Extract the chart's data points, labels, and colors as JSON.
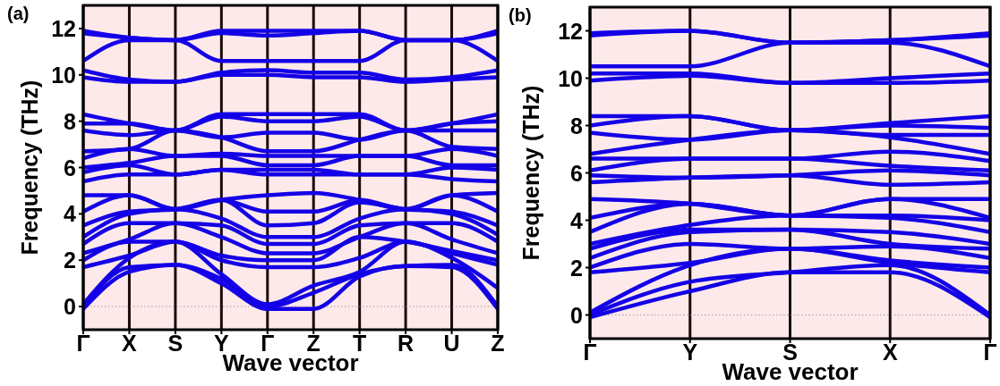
{
  "chart_data": [
    {
      "type": "line",
      "title": "(a)",
      "xlabel": "Wave vector",
      "ylabel": "Frequency (THz)",
      "categories": [
        "Γ",
        "X",
        "S",
        "Y",
        "Γ",
        "Z",
        "T",
        "R",
        "U",
        "Z"
      ],
      "ylim": [
        -1,
        13
      ],
      "yticks": [
        0,
        2,
        4,
        6,
        8,
        10,
        12
      ],
      "grid": "x",
      "marker": "none",
      "line_style": "solid",
      "ref_lines": [
        {
          "axis": "y",
          "value": 0,
          "color": "#888888",
          "line_style": "dotted"
        }
      ],
      "series": [
        {
          "color": "#1400e6",
          "values": [
            -0.1,
            1.5,
            1.8,
            1.0,
            -0.1,
            -0.1,
            1.3,
            1.75,
            1.7,
            -0.1
          ]
        },
        {
          "color": "#1400e6",
          "values": [
            0,
            1.7,
            1.8,
            1.2,
            0,
            0.6,
            1.4,
            1.75,
            1.8,
            0
          ]
        },
        {
          "color": "#1400e6",
          "values": [
            0.1,
            2.1,
            2.8,
            1.4,
            0.1,
            0.9,
            1.5,
            2.8,
            2.1,
            0.8
          ]
        },
        {
          "color": "#1400e6",
          "values": [
            1.7,
            2.2,
            2.8,
            2.0,
            1.7,
            1.7,
            2.1,
            2.8,
            2.3,
            1.8
          ]
        },
        {
          "color": "#1400e6",
          "values": [
            2.0,
            2.8,
            2.8,
            2.2,
            2.0,
            2.0,
            3.0,
            2.8,
            2.4,
            2.0
          ]
        },
        {
          "color": "#1400e6",
          "values": [
            2.3,
            2.9,
            3.6,
            3.0,
            2.3,
            2.3,
            3.0,
            3.6,
            2.9,
            2.3
          ]
        },
        {
          "color": "#1400e6",
          "values": [
            2.7,
            3.6,
            3.6,
            3.5,
            2.7,
            2.7,
            3.5,
            3.6,
            3.6,
            2.8
          ]
        },
        {
          "color": "#1400e6",
          "values": [
            3.0,
            4.0,
            4.2,
            3.8,
            3.0,
            3.0,
            3.8,
            4.2,
            4.0,
            3.1
          ]
        },
        {
          "color": "#1400e6",
          "values": [
            3.5,
            4.1,
            4.2,
            4.6,
            3.5,
            3.6,
            4.5,
            4.2,
            4.1,
            3.5
          ]
        },
        {
          "color": "#1400e6",
          "values": [
            4.1,
            4.8,
            4.2,
            4.6,
            4.1,
            4.1,
            4.6,
            4.2,
            4.8,
            4.1
          ]
        },
        {
          "color": "#1400e6",
          "values": [
            4.8,
            4.8,
            4.2,
            4.6,
            4.8,
            4.9,
            4.6,
            4.2,
            4.8,
            4.9
          ]
        },
        {
          "color": "#1400e6",
          "values": [
            5.4,
            5.7,
            5.7,
            5.9,
            5.7,
            5.7,
            5.7,
            5.7,
            5.5,
            5.4
          ]
        },
        {
          "color": "#1400e6",
          "values": [
            5.8,
            6.1,
            5.7,
            5.9,
            5.9,
            5.9,
            5.7,
            5.7,
            6.0,
            5.9
          ]
        },
        {
          "color": "#1400e6",
          "values": [
            6.0,
            6.2,
            6.5,
            6.5,
            6.1,
            6.1,
            6.5,
            6.5,
            6.1,
            6.1
          ]
        },
        {
          "color": "#1400e6",
          "values": [
            6.4,
            6.8,
            6.5,
            6.6,
            6.5,
            6.5,
            6.5,
            6.5,
            6.8,
            6.5
          ]
        },
        {
          "color": "#1400e6",
          "values": [
            6.7,
            6.8,
            7.6,
            7.3,
            6.7,
            6.7,
            7.2,
            7.6,
            6.9,
            6.8
          ]
        },
        {
          "color": "#1400e6",
          "values": [
            7.6,
            7.4,
            7.6,
            7.3,
            7.5,
            7.5,
            7.2,
            7.6,
            7.6,
            7.6
          ]
        },
        {
          "color": "#1400e6",
          "values": [
            7.9,
            7.9,
            7.6,
            8.2,
            8.0,
            8.0,
            8.2,
            7.6,
            7.9,
            8.0
          ]
        },
        {
          "color": "#1400e6",
          "values": [
            8.3,
            7.9,
            7.6,
            8.3,
            8.3,
            8.3,
            8.3,
            7.6,
            7.9,
            8.3
          ]
        },
        {
          "color": "#1400e6",
          "values": [
            9.9,
            9.7,
            9.7,
            10.0,
            10.0,
            9.9,
            9.9,
            9.7,
            9.8,
            9.9
          ]
        },
        {
          "color": "#1400e6",
          "values": [
            10.2,
            9.8,
            9.7,
            10.1,
            10.2,
            10.1,
            10.1,
            9.8,
            9.9,
            10.2
          ]
        },
        {
          "color": "#1400e6",
          "values": [
            10.6,
            11.5,
            11.5,
            10.6,
            10.6,
            10.6,
            10.6,
            11.5,
            11.5,
            10.6
          ]
        },
        {
          "color": "#1400e6",
          "values": [
            11.8,
            11.6,
            11.5,
            11.8,
            11.7,
            11.8,
            11.9,
            11.5,
            11.5,
            11.8
          ]
        },
        {
          "color": "#1400e6",
          "values": [
            11.9,
            11.6,
            11.5,
            11.9,
            11.9,
            11.9,
            11.9,
            11.5,
            11.5,
            11.9
          ]
        }
      ]
    },
    {
      "type": "line",
      "title": "(b)",
      "xlabel": "Wave vector",
      "ylabel": "Frequency (THz)",
      "categories": [
        "Γ",
        "Y",
        "S",
        "X",
        "Γ"
      ],
      "ylim": [
        -1,
        13
      ],
      "yticks": [
        0,
        2,
        4,
        6,
        8,
        10,
        12
      ],
      "grid": "x",
      "marker": "none",
      "line_style": "solid",
      "ref_lines": [
        {
          "axis": "y",
          "value": 0,
          "color": "#888888",
          "line_style": "dotted"
        }
      ],
      "series": [
        {
          "color": "#1400e6",
          "values": [
            -0.1,
            1.0,
            1.8,
            1.8,
            -0.1
          ]
        },
        {
          "color": "#1400e6",
          "values": [
            0,
            1.4,
            1.8,
            2.1,
            0
          ]
        },
        {
          "color": "#1400e6",
          "values": [
            0.1,
            2.1,
            2.8,
            2.2,
            1.8
          ]
        },
        {
          "color": "#1400e6",
          "values": [
            1.8,
            2.2,
            2.8,
            2.3,
            2.0
          ]
        },
        {
          "color": "#1400e6",
          "values": [
            2.0,
            3.0,
            2.8,
            2.9,
            2.4
          ]
        },
        {
          "color": "#1400e6",
          "values": [
            2.4,
            3.5,
            3.6,
            3.0,
            2.8
          ]
        },
        {
          "color": "#1400e6",
          "values": [
            2.8,
            3.6,
            3.6,
            3.5,
            3.0
          ]
        },
        {
          "color": "#1400e6",
          "values": [
            3.0,
            3.8,
            4.2,
            4.1,
            3.5
          ]
        },
        {
          "color": "#1400e6",
          "values": [
            3.5,
            4.7,
            4.2,
            4.2,
            4.0
          ]
        },
        {
          "color": "#1400e6",
          "values": [
            4.1,
            4.7,
            4.2,
            4.9,
            4.1
          ]
        },
        {
          "color": "#1400e6",
          "values": [
            4.9,
            4.7,
            4.2,
            4.9,
            4.9
          ]
        },
        {
          "color": "#1400e6",
          "values": [
            5.6,
            5.8,
            5.9,
            5.5,
            5.6
          ]
        },
        {
          "color": "#1400e6",
          "values": [
            5.9,
            5.8,
            5.9,
            6.1,
            5.9
          ]
        },
        {
          "color": "#1400e6",
          "values": [
            6.1,
            6.6,
            6.6,
            6.3,
            6.1
          ]
        },
        {
          "color": "#1400e6",
          "values": [
            6.6,
            6.6,
            6.6,
            6.9,
            6.5
          ]
        },
        {
          "color": "#1400e6",
          "values": [
            6.8,
            7.4,
            7.8,
            7.5,
            6.8
          ]
        },
        {
          "color": "#1400e6",
          "values": [
            7.7,
            7.4,
            7.8,
            7.6,
            7.6
          ]
        },
        {
          "color": "#1400e6",
          "values": [
            8.0,
            8.4,
            7.8,
            8.0,
            7.9
          ]
        },
        {
          "color": "#1400e6",
          "values": [
            8.4,
            8.4,
            7.8,
            8.1,
            8.4
          ]
        },
        {
          "color": "#1400e6",
          "values": [
            9.9,
            10.1,
            9.8,
            9.8,
            9.9
          ]
        },
        {
          "color": "#1400e6",
          "values": [
            10.2,
            10.2,
            9.8,
            10.0,
            10.2
          ]
        },
        {
          "color": "#1400e6",
          "values": [
            10.5,
            10.5,
            11.5,
            11.5,
            10.5
          ]
        },
        {
          "color": "#1400e6",
          "values": [
            11.8,
            12.0,
            11.5,
            11.6,
            11.8
          ]
        },
        {
          "color": "#1400e6",
          "values": [
            11.9,
            12.0,
            11.5,
            11.6,
            11.9
          ]
        }
      ]
    }
  ]
}
